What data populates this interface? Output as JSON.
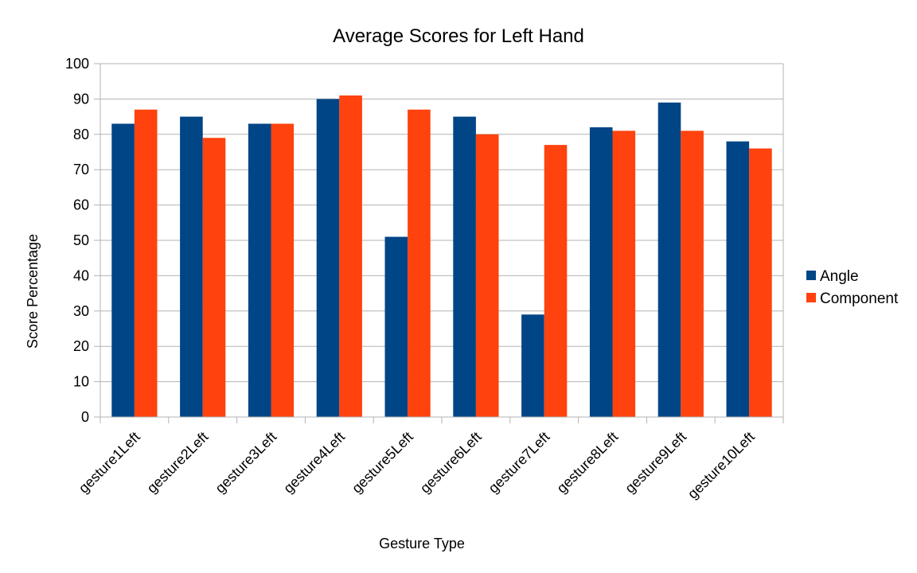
{
  "chart_data": {
    "type": "bar",
    "title": "Average Scores for Left Hand",
    "xlabel": "Gesture Type",
    "ylabel": "Score Percentage",
    "ylim": [
      0,
      100
    ],
    "yticks": [
      "0",
      "10",
      "20",
      "30",
      "40",
      "50",
      "60",
      "70",
      "80",
      "90",
      "100"
    ],
    "grid": true,
    "legend": "right",
    "categories": [
      "gesture1Left",
      "gesture2Left",
      "gesture3Left",
      "gesture4Left",
      "gesture5Left",
      "gesture6Left",
      "gesture7Left",
      "gesture8Left",
      "gesture9Left",
      "gesture10Left"
    ],
    "series": [
      {
        "name": "Angle",
        "color": "#004586",
        "values": [
          83,
          85,
          83,
          90,
          51,
          85,
          29,
          82,
          89,
          78
        ]
      },
      {
        "name": "Component",
        "color": "#ff420e",
        "values": [
          87,
          79,
          83,
          91,
          87,
          80,
          77,
          81,
          81,
          76
        ]
      }
    ]
  }
}
